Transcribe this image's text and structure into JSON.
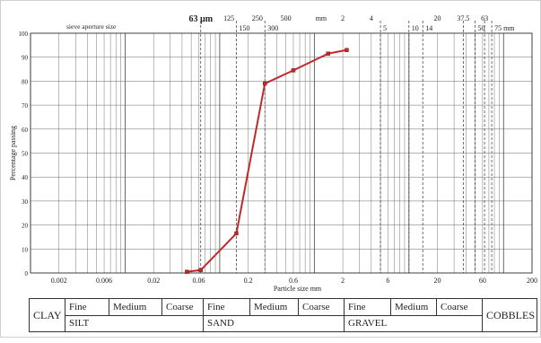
{
  "chart_data": {
    "type": "line",
    "title": "",
    "xlabel": "Particle size mm",
    "ylabel": "Percentage passing",
    "xscale": "log",
    "xlim": [
      0.001,
      200
    ],
    "ylim": [
      0,
      100
    ],
    "grid": true,
    "x_tick_labels": [
      {
        "label": "0.002",
        "value": 0.002
      },
      {
        "label": "0.006",
        "value": 0.006
      },
      {
        "label": "0.02",
        "value": 0.02
      },
      {
        "label": "0.06",
        "value": 0.06
      },
      {
        "label": "0.2",
        "value": 0.2
      },
      {
        "label": "0.6",
        "value": 0.6
      },
      {
        "label": "2",
        "value": 2
      },
      {
        "label": "6",
        "value": 6
      },
      {
        "label": "20",
        "value": 20
      },
      {
        "label": "60",
        "value": 60
      },
      {
        "label": "200",
        "value": 200
      }
    ],
    "y_ticks": [
      0,
      10,
      20,
      30,
      40,
      50,
      60,
      70,
      80,
      90,
      100
    ],
    "sieve_caption": "sieve aperture size",
    "sieve_labels_top": [
      {
        "label": "63 µm",
        "value": 0.063
      },
      {
        "label": "125",
        "value": 0.125
      },
      {
        "label": "250",
        "value": 0.25
      },
      {
        "label": "500",
        "value": 0.5
      },
      {
        "label": "mm",
        "value": 1.18
      },
      {
        "label": "2",
        "value": 2
      },
      {
        "label": "4",
        "value": 4
      },
      {
        "label": "20",
        "value": 20
      },
      {
        "label": "37.5",
        "value": 37.5
      },
      {
        "label": "63",
        "value": 63
      }
    ],
    "sieve_labels_bottom": [
      {
        "label": "150",
        "value": 0.15
      },
      {
        "label": "300",
        "value": 0.3
      },
      {
        "label": "5",
        "value": 5
      },
      {
        "label": "10",
        "value": 10
      },
      {
        "label": "14",
        "value": 14
      },
      {
        "label": "50",
        "value": 50
      },
      {
        "label": "75 mm",
        "value": 75
      }
    ],
    "sieve_lines": [
      0.063,
      0.15,
      0.3,
      5,
      10,
      14,
      37.5,
      50,
      63,
      75
    ],
    "series": [
      {
        "color": "#c0292b",
        "points": [
          {
            "x": 0.045,
            "y": 0.5
          },
          {
            "x": 0.063,
            "y": 1.2
          },
          {
            "x": 0.15,
            "y": 16.5
          },
          {
            "x": 0.3,
            "y": 79
          },
          {
            "x": 0.6,
            "y": 84.5
          },
          {
            "x": 1.4,
            "y": 91.5
          },
          {
            "x": 2.2,
            "y": 93
          }
        ]
      }
    ]
  },
  "classification": {
    "clay": "CLAY",
    "cobbles": "COBBLES",
    "sub": [
      "Fine",
      "Medium",
      "Coarse",
      "Fine",
      "Medium",
      "Coarse",
      "Fine",
      "Medium",
      "Coarse"
    ],
    "main": [
      "SILT",
      "SAND",
      "GRAVEL"
    ]
  }
}
